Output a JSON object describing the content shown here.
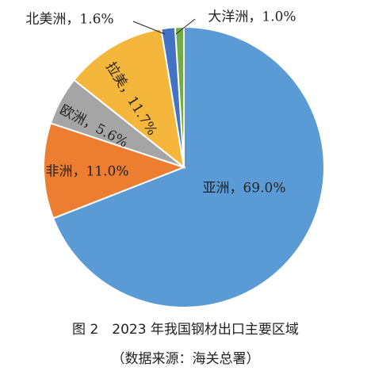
{
  "chart_data": {
    "type": "pie",
    "title": "图 2　2023 年我国钢材出口主要区域",
    "subtitle": "（数据来源：海关总署）",
    "values": [
      69.0,
      11.0,
      5.6,
      11.7,
      1.6,
      1.0
    ],
    "value_labels": [
      "亚洲，69.0%",
      "非洲，11.0%",
      "欧洲，5.6%",
      "拉美，11.7%",
      "北美洲，1.6%",
      "大洋洲，1.0%"
    ],
    "colors": [
      "#5b9bd5",
      "#ed7d31",
      "#a5a5a5",
      "#f5b73b",
      "#4472c4",
      "#70ad47"
    ]
  }
}
